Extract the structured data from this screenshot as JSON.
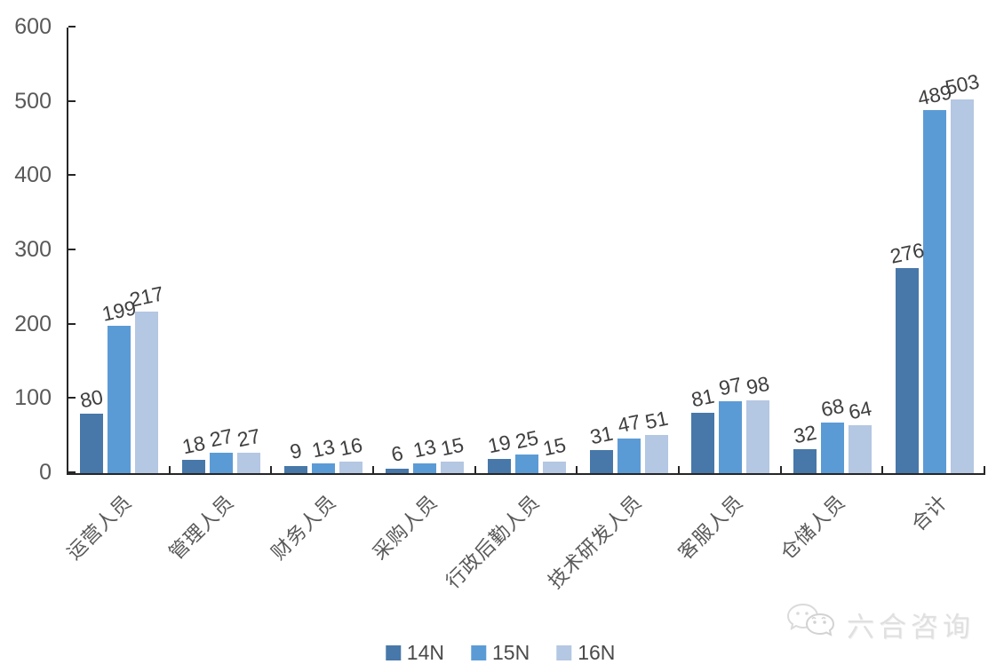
{
  "chart_data": {
    "type": "bar",
    "title": "",
    "categories": [
      "运营人员",
      "管理人员",
      "财务人员",
      "采购人员",
      "行政后勤人员",
      "技术研发人员",
      "客服人员",
      "仓储人员",
      "合计"
    ],
    "series": [
      {
        "name": "14N",
        "color": "#4778A9",
        "values": [
          80,
          18,
          9,
          6,
          19,
          31,
          81,
          32,
          276
        ]
      },
      {
        "name": "15N",
        "color": "#5B9BD5",
        "values": [
          199,
          27,
          13,
          13,
          25,
          47,
          97,
          68,
          489
        ]
      },
      {
        "name": "16N",
        "color": "#B4C7E3",
        "values": [
          217,
          27,
          16,
          15,
          15,
          51,
          98,
          64,
          503
        ]
      }
    ],
    "ylim": [
      0,
      600
    ],
    "yticks": [
      0,
      100,
      200,
      300,
      400,
      500,
      600
    ],
    "grid": false,
    "data_labels": true,
    "data_label_rotation_deg": -12,
    "category_label_rotation_deg": -45,
    "legend_position": "bottom",
    "axis_color": "#262626",
    "tick_label_color": "#595959",
    "data_label_color": "#3f3f3f"
  },
  "watermark": {
    "text": "六合咨询",
    "icon": "wechat-icon"
  }
}
